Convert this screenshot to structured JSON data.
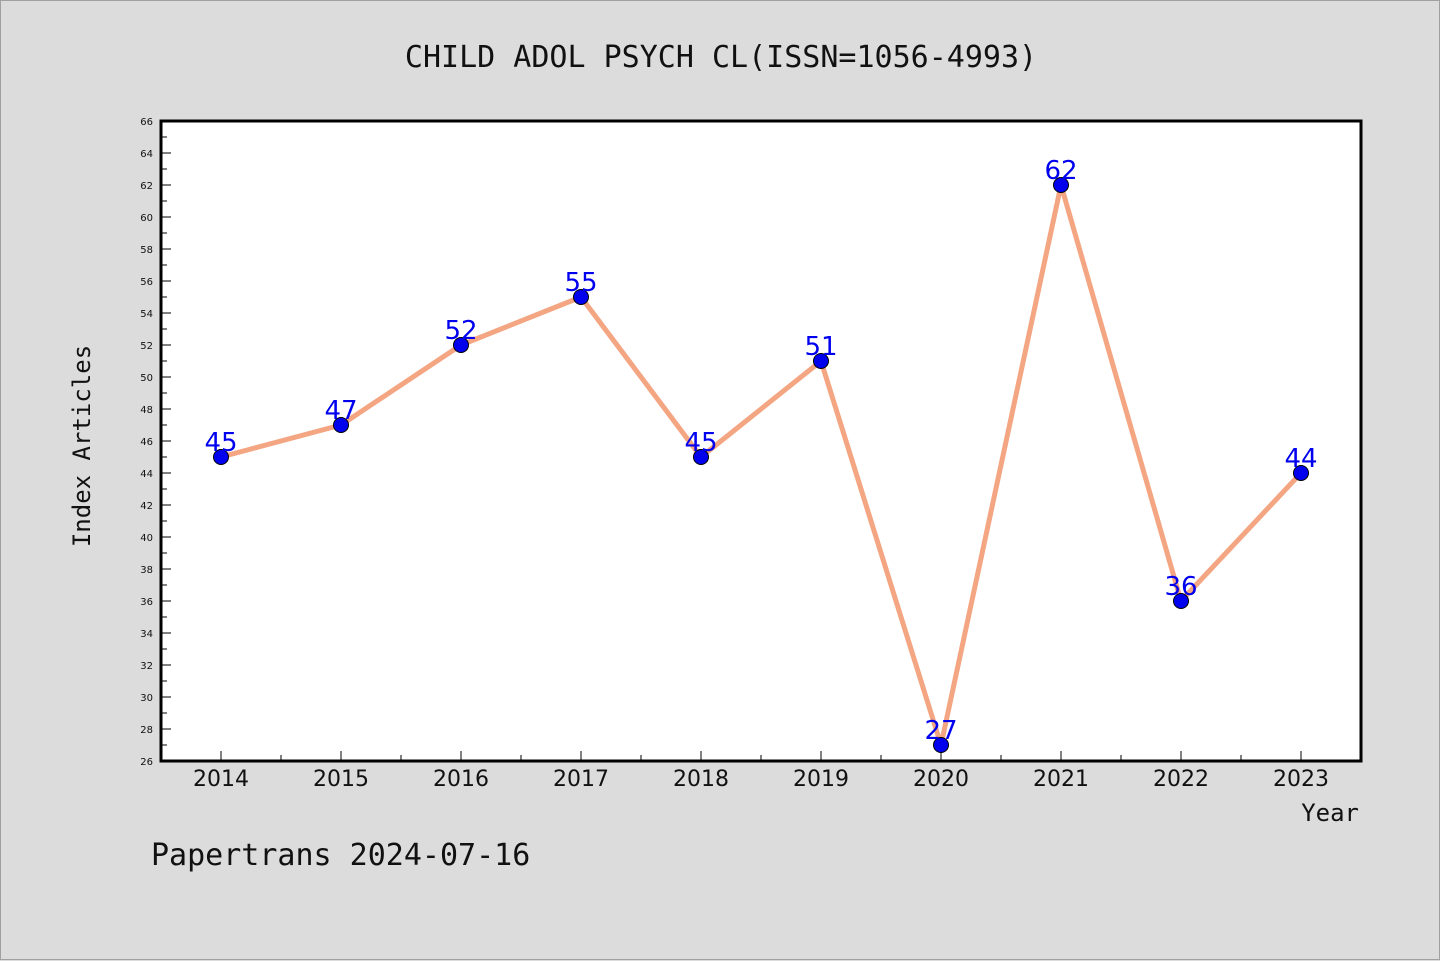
{
  "chart_data": {
    "type": "line",
    "title": "CHILD ADOL PSYCH CL(ISSN=1056-4993)",
    "xlabel": "Year",
    "ylabel": "Index Articles",
    "categories": [
      "2014",
      "2015",
      "2016",
      "2017",
      "2018",
      "2019",
      "2020",
      "2021",
      "2022",
      "2023"
    ],
    "series": [
      {
        "values": [
          45,
          47,
          52,
          55,
          45,
          51,
          27,
          62,
          36,
          44
        ]
      }
    ],
    "ylim": [
      26,
      66
    ],
    "yticks": [
      26,
      28,
      30,
      32,
      34,
      36,
      38,
      40,
      42,
      44,
      46,
      48,
      50,
      52,
      54,
      56,
      58,
      60,
      62,
      64,
      66
    ],
    "grid": false,
    "legend": "none",
    "line_color": "#f4a582",
    "marker_color": "#0000ee",
    "label_color": "#0000ee"
  },
  "footer": "Papertrans 2024-07-16"
}
